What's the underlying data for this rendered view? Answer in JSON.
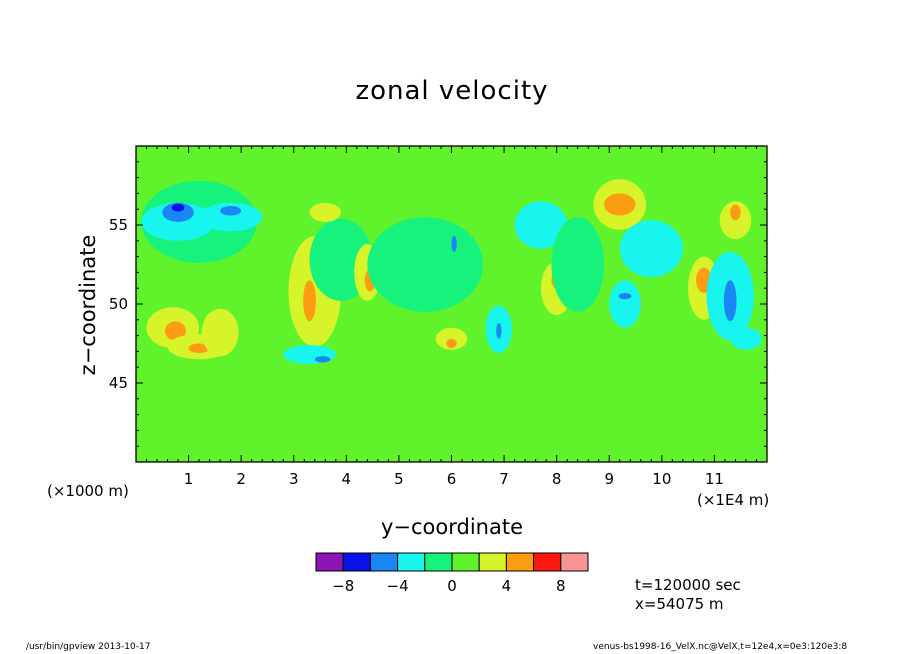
{
  "chart_data": {
    "type": "heatmap",
    "title": "zonal velocity",
    "xlabel": "y−coordinate",
    "ylabel": "z−coordinate",
    "x_scale_label_left": "(×1000 m)",
    "x_scale_label_right": "(×1E4 m)",
    "x_ticks": [
      "1",
      "2",
      "3",
      "4",
      "5",
      "6",
      "7",
      "8",
      "9",
      "10",
      "11"
    ],
    "x_tick_values": [
      1,
      2,
      3,
      4,
      5,
      6,
      7,
      8,
      9,
      10,
      11
    ],
    "xlim": [
      0,
      12
    ],
    "y_ticks": [
      "45",
      "50",
      "55"
    ],
    "y_tick_values": [
      45,
      50,
      55
    ],
    "ylim": [
      40,
      60
    ],
    "colorbar": {
      "colors": [
        "#8d15b5",
        "#0b12e8",
        "#1a86f4",
        "#18f4ee",
        "#17f27d",
        "#60f22a",
        "#d7f42b",
        "#fb9c12",
        "#fd1811",
        "#f99494"
      ],
      "tick_labels": [
        "−8",
        "−4",
        "0",
        "4",
        "8"
      ],
      "tick_values": [
        -8,
        -4,
        0,
        4,
        8
      ],
      "bounds": [
        -10,
        -8,
        -6,
        -4,
        -2,
        0,
        2,
        4,
        6,
        8,
        10
      ]
    },
    "field_background_color": "#60f22a",
    "regions": [
      {
        "color": "#17f27d",
        "cx": 1.2,
        "cy": 55.2,
        "rx": 1.1,
        "ry": 2.6
      },
      {
        "color": "#18f4ee",
        "cx": 0.8,
        "cy": 55.2,
        "rx": 0.7,
        "ry": 1.2
      },
      {
        "color": "#18f4ee",
        "cx": 1.8,
        "cy": 55.5,
        "rx": 0.6,
        "ry": 0.9
      },
      {
        "color": "#1a86f4",
        "cx": 0.8,
        "cy": 55.8,
        "rx": 0.3,
        "ry": 0.6
      },
      {
        "color": "#0b12e8",
        "cx": 0.8,
        "cy": 56.1,
        "rx": 0.12,
        "ry": 0.25
      },
      {
        "color": "#1a86f4",
        "cx": 1.8,
        "cy": 55.9,
        "rx": 0.2,
        "ry": 0.3
      },
      {
        "color": "#d7f42b",
        "cx": 0.7,
        "cy": 48.5,
        "rx": 0.5,
        "ry": 1.3
      },
      {
        "color": "#fb9c12",
        "cx": 0.75,
        "cy": 48.3,
        "rx": 0.2,
        "ry": 0.6
      },
      {
        "color": "#d7f42b",
        "cx": 1.2,
        "cy": 47.3,
        "rx": 0.6,
        "ry": 0.8
      },
      {
        "color": "#fb9c12",
        "cx": 1.2,
        "cy": 47.2,
        "rx": 0.2,
        "ry": 0.3
      },
      {
        "color": "#d7f42b",
        "cx": 1.6,
        "cy": 48.2,
        "rx": 0.35,
        "ry": 1.5
      },
      {
        "color": "#d7f42b",
        "cx": 3.4,
        "cy": 50.8,
        "rx": 0.5,
        "ry": 3.5
      },
      {
        "color": "#fb9c12",
        "cx": 3.3,
        "cy": 50.2,
        "rx": 0.12,
        "ry": 1.3
      },
      {
        "color": "#17f27d",
        "cx": 3.9,
        "cy": 52.8,
        "rx": 0.6,
        "ry": 2.6
      },
      {
        "color": "#d7f42b",
        "cx": 4.4,
        "cy": 52.0,
        "rx": 0.25,
        "ry": 1.8
      },
      {
        "color": "#fb9c12",
        "cx": 4.45,
        "cy": 51.5,
        "rx": 0.1,
        "ry": 0.7
      },
      {
        "color": "#d7f42b",
        "cx": 3.6,
        "cy": 55.8,
        "rx": 0.3,
        "ry": 0.6
      },
      {
        "color": "#18f4ee",
        "cx": 3.3,
        "cy": 46.8,
        "rx": 0.5,
        "ry": 0.6
      },
      {
        "color": "#1a86f4",
        "cx": 3.55,
        "cy": 46.5,
        "rx": 0.15,
        "ry": 0.2
      },
      {
        "color": "#18f4ee",
        "cx": 5.6,
        "cy": 52.8,
        "rx": 0.7,
        "ry": 2.4
      },
      {
        "color": "#17f27d",
        "cx": 5.5,
        "cy": 52.5,
        "rx": 1.1,
        "ry": 3.0
      },
      {
        "color": "#1a86f4",
        "cx": 6.05,
        "cy": 53.8,
        "rx": 0.05,
        "ry": 0.5
      },
      {
        "color": "#d7f42b",
        "cx": 6.0,
        "cy": 47.8,
        "rx": 0.3,
        "ry": 0.7
      },
      {
        "color": "#fb9c12",
        "cx": 6.0,
        "cy": 47.5,
        "rx": 0.1,
        "ry": 0.3
      },
      {
        "color": "#18f4ee",
        "cx": 6.9,
        "cy": 48.4,
        "rx": 0.25,
        "ry": 1.5
      },
      {
        "color": "#1a86f4",
        "cx": 6.9,
        "cy": 48.3,
        "rx": 0.05,
        "ry": 0.5
      },
      {
        "color": "#18f4ee",
        "cx": 7.7,
        "cy": 55.0,
        "rx": 0.5,
        "ry": 1.5
      },
      {
        "color": "#d7f42b",
        "cx": 8.0,
        "cy": 51.0,
        "rx": 0.3,
        "ry": 1.7
      },
      {
        "color": "#fb9c12",
        "cx": 8.0,
        "cy": 51.5,
        "rx": 0.1,
        "ry": 0.5
      },
      {
        "color": "#17f27d",
        "cx": 8.4,
        "cy": 52.5,
        "rx": 0.5,
        "ry": 3.0
      },
      {
        "color": "#d7f42b",
        "cx": 9.2,
        "cy": 56.3,
        "rx": 0.5,
        "ry": 1.6
      },
      {
        "color": "#fb9c12",
        "cx": 9.2,
        "cy": 56.3,
        "rx": 0.3,
        "ry": 0.7
      },
      {
        "color": "#18f4ee",
        "cx": 9.8,
        "cy": 53.5,
        "rx": 0.6,
        "ry": 1.8
      },
      {
        "color": "#18f4ee",
        "cx": 9.3,
        "cy": 50.0,
        "rx": 0.3,
        "ry": 1.5
      },
      {
        "color": "#1a86f4",
        "cx": 9.3,
        "cy": 50.5,
        "rx": 0.12,
        "ry": 0.2
      },
      {
        "color": "#d7f42b",
        "cx": 10.8,
        "cy": 51.0,
        "rx": 0.3,
        "ry": 2.0
      },
      {
        "color": "#fb9c12",
        "cx": 10.8,
        "cy": 51.5,
        "rx": 0.15,
        "ry": 0.8
      },
      {
        "color": "#18f4ee",
        "cx": 11.3,
        "cy": 50.5,
        "rx": 0.45,
        "ry": 2.8
      },
      {
        "color": "#1a86f4",
        "cx": 11.3,
        "cy": 50.2,
        "rx": 0.12,
        "ry": 1.3
      },
      {
        "color": "#d7f42b",
        "cx": 11.4,
        "cy": 55.3,
        "rx": 0.3,
        "ry": 1.2
      },
      {
        "color": "#fb9c12",
        "cx": 11.4,
        "cy": 55.8,
        "rx": 0.1,
        "ry": 0.5
      },
      {
        "color": "#18f4ee",
        "cx": 11.6,
        "cy": 47.8,
        "rx": 0.3,
        "ry": 0.7
      }
    ]
  },
  "info": {
    "time": "t=120000 sec",
    "xpos": "x=54075 m"
  },
  "footer": {
    "left": "/usr/bin/gpview  2013-10-17",
    "right": "venus-bs1998-16_VelX.nc@VelX,t=12e4,x=0e3:120e3:8"
  }
}
